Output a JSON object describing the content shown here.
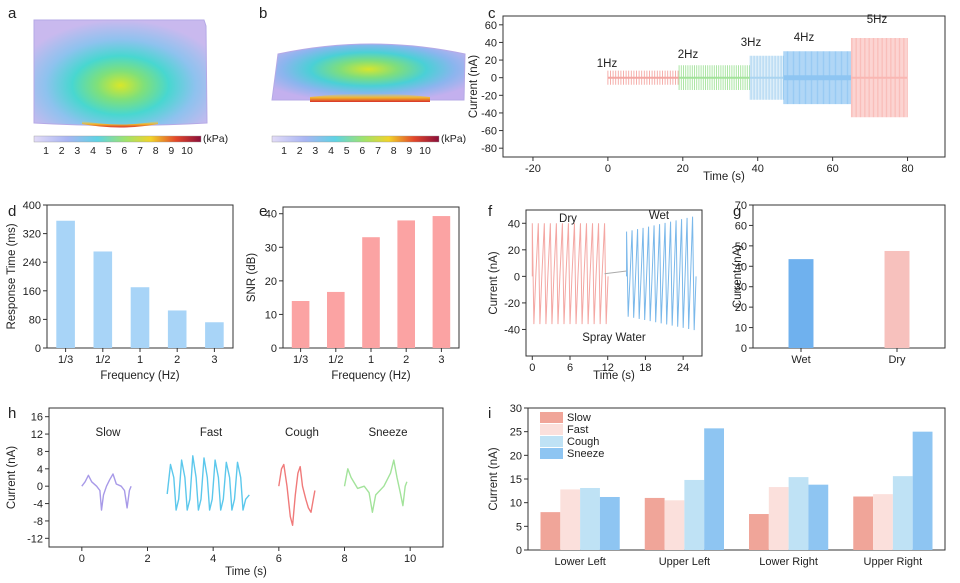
{
  "panels": {
    "a": {
      "letter": "a",
      "colorbar": {
        "ticks": [
          "1",
          "2",
          "3",
          "4",
          "5",
          "6",
          "7",
          "8",
          "9",
          "10"
        ],
        "unit": "(kPa)"
      }
    },
    "b": {
      "letter": "b",
      "colorbar": {
        "ticks": [
          "1",
          "2",
          "3",
          "4",
          "5",
          "6",
          "7",
          "8",
          "9",
          "10"
        ],
        "unit": "(kPa)"
      }
    }
  },
  "colors": {
    "blue": "#a8d4f7",
    "blue_dark": "#6fb1ee",
    "red": "#fba3a3",
    "pink": "#f7c1bd",
    "salmon": "#f0a599",
    "light_pink": "#fbe0dc",
    "light_blue": "#bfe2f5",
    "sky": "#8ec5f2",
    "purple": "#a89ae8",
    "cyan": "#5cc8ec",
    "coral": "#f07a7a",
    "green": "#a3e39b",
    "green_trace": "#a8d9a0"
  },
  "chart_data": [
    {
      "id": "c",
      "letter": "c",
      "type": "line",
      "xlabel": "Time (s)",
      "ylabel": "Current (nA)",
      "xlim": [
        -28,
        90
      ],
      "ylim": [
        -90,
        70
      ],
      "xticks": [
        "-20",
        "0",
        "20",
        "40",
        "60",
        "80"
      ],
      "yticks": [
        "-80",
        "-60",
        "-40",
        "-20",
        "0",
        "20",
        "40",
        "60"
      ],
      "series": [
        {
          "name": "1Hz",
          "t_start": 0,
          "t_end": 19,
          "amplitude": 8,
          "color": "#f4a7a3"
        },
        {
          "name": "2Hz",
          "t_start": 19,
          "t_end": 38,
          "amplitude": 14,
          "color": "#a3e39b"
        },
        {
          "name": "3Hz",
          "t_start": 38,
          "t_end": 47,
          "amplitude": 25,
          "color": "#aad4f0"
        },
        {
          "name": "4Hz",
          "t_start": 47,
          "t_end": 65,
          "amplitude": 30,
          "color": "#8ec5f2"
        },
        {
          "name": "5Hz",
          "t_start": 65,
          "t_end": 80,
          "amplitude": 45,
          "color": "#f9b7b3"
        }
      ]
    },
    {
      "id": "d",
      "letter": "d",
      "type": "bar",
      "xlabel": "Frequency (Hz)",
      "ylabel": "Response Time (ms)",
      "categories": [
        "1/3",
        "1/2",
        "1",
        "2",
        "3"
      ],
      "values": [
        356,
        270,
        170,
        105,
        72
      ],
      "ylim": [
        0,
        400
      ],
      "yticks": [
        "0",
        "80",
        "160",
        "240",
        "320",
        "400"
      ]
    },
    {
      "id": "e",
      "letter": "e",
      "type": "bar",
      "xlabel": "Frequency (Hz)",
      "ylabel": "SNR (dB)",
      "categories": [
        "1/3",
        "1/2",
        "1",
        "2",
        "3"
      ],
      "values": [
        14,
        16.7,
        33,
        38,
        39.3
      ],
      "ylim": [
        0,
        42
      ],
      "yticks": [
        "0",
        "10",
        "20",
        "30",
        "40"
      ]
    },
    {
      "id": "f",
      "letter": "f",
      "type": "line",
      "xlabel": "Time (s)",
      "ylabel": "Current (nA)",
      "xlim": [
        -1,
        27
      ],
      "ylim": [
        -60,
        50
      ],
      "xticks": [
        "0",
        "6",
        "12",
        "18",
        "24"
      ],
      "yticks": [
        "-40",
        "-20",
        "0",
        "20",
        "40"
      ],
      "annotations": [
        "Dry",
        "Wet",
        "Spray Water"
      ],
      "series": [
        {
          "name": "Dry",
          "t_start": 0,
          "t_end": 11.5,
          "amplitude": 40,
          "color": "#f4a7a3"
        },
        {
          "name": "Wet",
          "t_start": 15,
          "t_end": 25.5,
          "amplitude": 45,
          "color": "#7ab8ea"
        }
      ]
    },
    {
      "id": "g",
      "letter": "g",
      "type": "bar",
      "xlabel": "",
      "ylabel": "Current (nA)",
      "categories": [
        "Wet",
        "Dry"
      ],
      "values": [
        43.5,
        47.5
      ],
      "ylim": [
        0,
        70
      ],
      "yticks": [
        "0",
        "10",
        "20",
        "30",
        "40",
        "50",
        "60",
        "70"
      ]
    },
    {
      "id": "h",
      "letter": "h",
      "type": "line",
      "xlabel": "Time (s)",
      "ylabel": "Current (nA)",
      "xlim": [
        -1,
        11
      ],
      "ylim": [
        -14,
        18
      ],
      "xticks": [
        "0",
        "2",
        "4",
        "6",
        "8",
        "10"
      ],
      "yticks": [
        "-12",
        "-8",
        "-4",
        "0",
        "4",
        "8",
        "12",
        "16"
      ],
      "series": [
        {
          "name": "Slow",
          "t_start": 0,
          "t_end": 1.5,
          "color": "#a89ae8"
        },
        {
          "name": "Fast",
          "t_start": 2.6,
          "t_end": 5.1,
          "color": "#5cc8ec"
        },
        {
          "name": "Cough",
          "t_start": 6,
          "t_end": 7.1,
          "color": "#f07a7a"
        },
        {
          "name": "Sneeze",
          "t_start": 8,
          "t_end": 9.9,
          "color": "#a3e39b"
        }
      ]
    },
    {
      "id": "i",
      "letter": "i",
      "type": "bar",
      "xlabel": "",
      "ylabel": "Current (nA)",
      "categories": [
        "Lower Left",
        "Upper Left",
        "Lower Right",
        "Upper Right"
      ],
      "series": [
        {
          "name": "Slow",
          "values": [
            8,
            11,
            7.6,
            11.3
          ],
          "color": "#f0a599"
        },
        {
          "name": "Fast",
          "values": [
            12.8,
            10.5,
            13.3,
            11.8
          ],
          "color": "#fbe0dc"
        },
        {
          "name": "Cough",
          "values": [
            13.1,
            14.8,
            15.4,
            15.6
          ],
          "color": "#bfe2f5"
        },
        {
          "name": "Sneeze",
          "values": [
            11.2,
            25.7,
            13.8,
            25
          ],
          "color": "#8ec5f2"
        }
      ],
      "ylim": [
        0,
        30
      ],
      "yticks": [
        "0",
        "5",
        "10",
        "15",
        "20",
        "25",
        "30"
      ]
    }
  ]
}
